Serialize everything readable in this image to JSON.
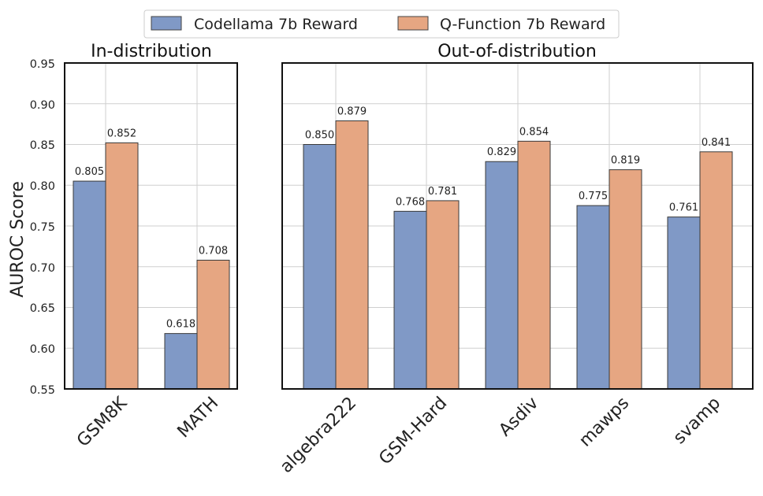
{
  "chart_data": {
    "type": "bar",
    "ylabel": "AUROC Score",
    "ylim": [
      0.55,
      0.95
    ],
    "yticks": [
      "0.55",
      "0.60",
      "0.65",
      "0.70",
      "0.75",
      "0.80",
      "0.85",
      "0.90",
      "0.95"
    ],
    "legend": {
      "placement": "top-center",
      "series1": "Codellama 7b Reward",
      "series2": "Q-Function 7b Reward"
    },
    "colors": {
      "series1": "#8099c6",
      "series2": "#e6a682"
    },
    "panels": [
      {
        "title": "In-distribution",
        "categories": [
          "GSM8K",
          "MATH"
        ],
        "series": [
          {
            "name": "Codellama 7b Reward",
            "values": [
              0.805,
              0.618
            ],
            "labels": [
              "0.805",
              "0.618"
            ]
          },
          {
            "name": "Q-Function 7b Reward",
            "values": [
              0.852,
              0.708
            ],
            "labels": [
              "0.852",
              "0.708"
            ]
          }
        ]
      },
      {
        "title": "Out-of-distribution",
        "categories": [
          "algebra222",
          "GSM-Hard",
          "Asdiv",
          "mawps",
          "svamp"
        ],
        "series": [
          {
            "name": "Codellama 7b Reward",
            "values": [
              0.85,
              0.768,
              0.829,
              0.775,
              0.761
            ],
            "labels": [
              "0.850",
              "0.768",
              "0.829",
              "0.775",
              "0.761"
            ]
          },
          {
            "name": "Q-Function 7b Reward",
            "values": [
              0.879,
              0.781,
              0.854,
              0.819,
              0.841
            ],
            "labels": [
              "0.879",
              "0.781",
              "0.854",
              "0.819",
              "0.841"
            ]
          }
        ]
      }
    ]
  }
}
